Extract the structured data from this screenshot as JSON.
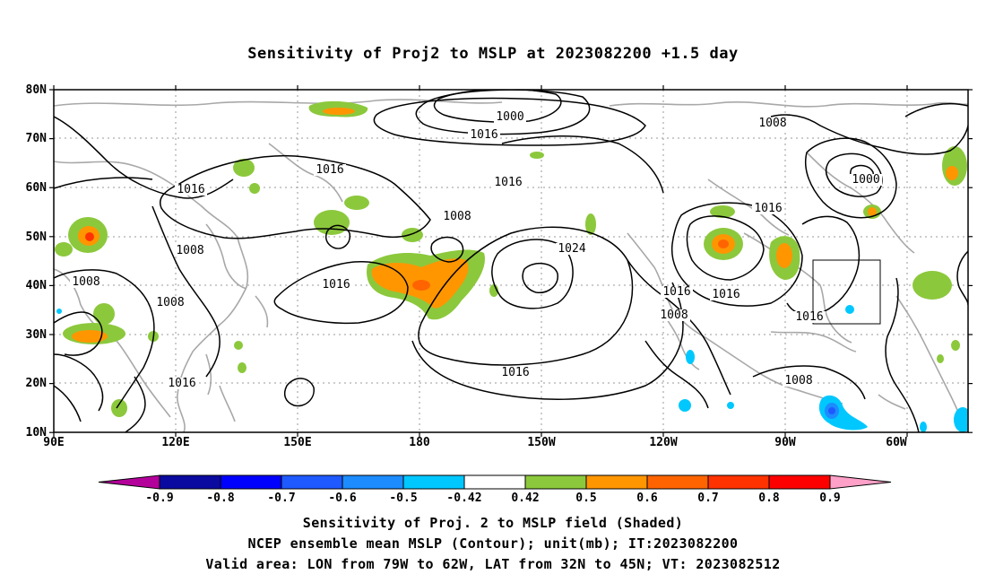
{
  "title": "Sensitivity of Proj2 to MSLP at 2023082200 +1.5 day",
  "y_ticks": [
    "80N",
    "70N",
    "60N",
    "50N",
    "40N",
    "30N",
    "20N",
    "10N"
  ],
  "x_ticks": [
    "90E",
    "120E",
    "150E",
    "180",
    "150W",
    "120W",
    "90W",
    "60W"
  ],
  "contour_labels": [
    "1000",
    "1016",
    "1016",
    "1008",
    "1016",
    "1016",
    "1016",
    "1008",
    "1024",
    "1016",
    "1016",
    "1008",
    "1008",
    "1016",
    "1016",
    "1000",
    "1016",
    "1008",
    "1008",
    "1016",
    "1008"
  ],
  "colorbar": {
    "labels": [
      "-0.9",
      "-0.8",
      "-0.7",
      "-0.6",
      "-0.5",
      "-0.42",
      "0.42",
      "0.5",
      "0.6",
      "0.7",
      "0.8",
      "0.9"
    ],
    "colors": [
      "#b4009a",
      "#0a0aa0",
      "#0000ff",
      "#1e5aff",
      "#1c8cff",
      "#00c8ff",
      "#ffffff",
      "#8cc83c",
      "#ff9600",
      "#ff6400",
      "#ff3200",
      "#ff0000",
      "#ffa0c8"
    ]
  },
  "footer": {
    "line1": "Sensitivity of Proj. 2 to MSLP field (Shaded)",
    "line2": "NCEP ensemble mean MSLP (Contour); unit(mb); IT:2023082200",
    "line3": "Valid area: LON from 79W to 62W, LAT from 32N to 45N; VT: 2023082512"
  }
}
